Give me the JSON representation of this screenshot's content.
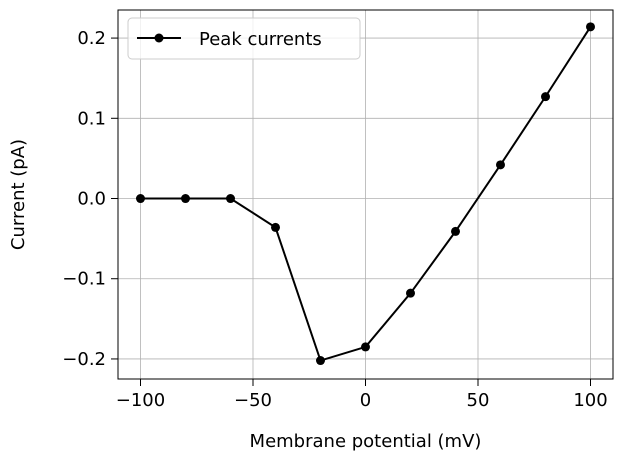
{
  "chart_data": {
    "type": "line",
    "title": "",
    "xlabel": "Membrane potential (mV)",
    "ylabel": "Current (pA)",
    "xlim": [
      -110,
      110
    ],
    "ylim": [
      -0.225,
      0.235
    ],
    "x_ticks": [
      -100,
      -50,
      0,
      50,
      100
    ],
    "x_tick_labels": [
      "−100",
      "−50",
      "0",
      "50",
      "100"
    ],
    "y_ticks": [
      -0.2,
      -0.1,
      0.0,
      0.1,
      0.2
    ],
    "y_tick_labels": [
      "−0.2",
      "−0.1",
      "0.0",
      "0.1",
      "0.2"
    ],
    "grid": true,
    "legend_position": "upper-left",
    "series": [
      {
        "name": "Peak currents",
        "color": "#000000",
        "marker": "circle",
        "x": [
          -100,
          -80,
          -60,
          -40,
          -20,
          0,
          20,
          40,
          60,
          80,
          100
        ],
        "y": [
          0.0,
          0.0,
          0.0,
          -0.036,
          -0.202,
          -0.185,
          -0.118,
          -0.041,
          0.042,
          0.127,
          0.214
        ]
      }
    ]
  }
}
